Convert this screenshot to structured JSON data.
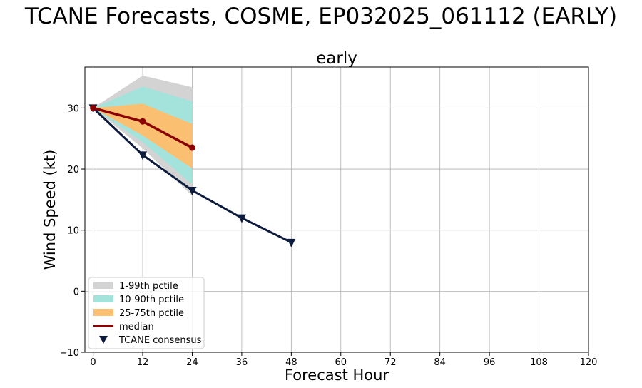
{
  "figure_title": "TCANE Forecasts, COSME, EP032025_061112 (EARLY)",
  "chart_data": {
    "type": "line",
    "title": "early",
    "xlabel": "Forecast Hour",
    "ylabel": "Wind Speed (kt)",
    "xlim": [
      -2,
      120
    ],
    "ylim": [
      -10,
      36.7
    ],
    "x_ticks": [
      0,
      12,
      24,
      36,
      48,
      60,
      72,
      84,
      96,
      108,
      120
    ],
    "x_tick_labels": [
      "0",
      "12",
      "24",
      "36",
      "48",
      "60",
      "72",
      "84",
      "96",
      "108",
      "120"
    ],
    "y_ticks": [
      -10,
      0,
      10,
      20,
      30
    ],
    "y_tick_labels": [
      "−10",
      "0",
      "10",
      "20",
      "30"
    ],
    "grid": true,
    "legend_position": "lower-left",
    "bands": [
      {
        "name": "1-99th pctile",
        "color": "#d3d3d3",
        "x": [
          0,
          12,
          24
        ],
        "lower": [
          30,
          23.4,
          15.6
        ],
        "upper": [
          30,
          35.3,
          33.4
        ]
      },
      {
        "name": "10-90th pctile",
        "color": "#a4e3dc",
        "x": [
          0,
          12,
          24
        ],
        "lower": [
          30,
          24.4,
          17.5
        ],
        "upper": [
          30,
          33.5,
          31.1
        ]
      },
      {
        "name": "25-75th pctile",
        "color": "#fbbf72",
        "x": [
          0,
          12,
          24
        ],
        "lower": [
          30,
          25.5,
          20.1
        ],
        "upper": [
          30,
          30.7,
          27.4
        ]
      }
    ],
    "series": [
      {
        "name": "median",
        "color": "#8b0000",
        "marker": "circle",
        "x": [
          0,
          12,
          24
        ],
        "values": [
          30,
          27.8,
          23.5
        ]
      },
      {
        "name": "TCANE consensus",
        "color": "#0d1b3e",
        "marker": "triangle-down",
        "x": [
          0,
          12,
          24,
          36,
          48
        ],
        "values": [
          30,
          22.3,
          16.5,
          12,
          8
        ]
      }
    ]
  }
}
